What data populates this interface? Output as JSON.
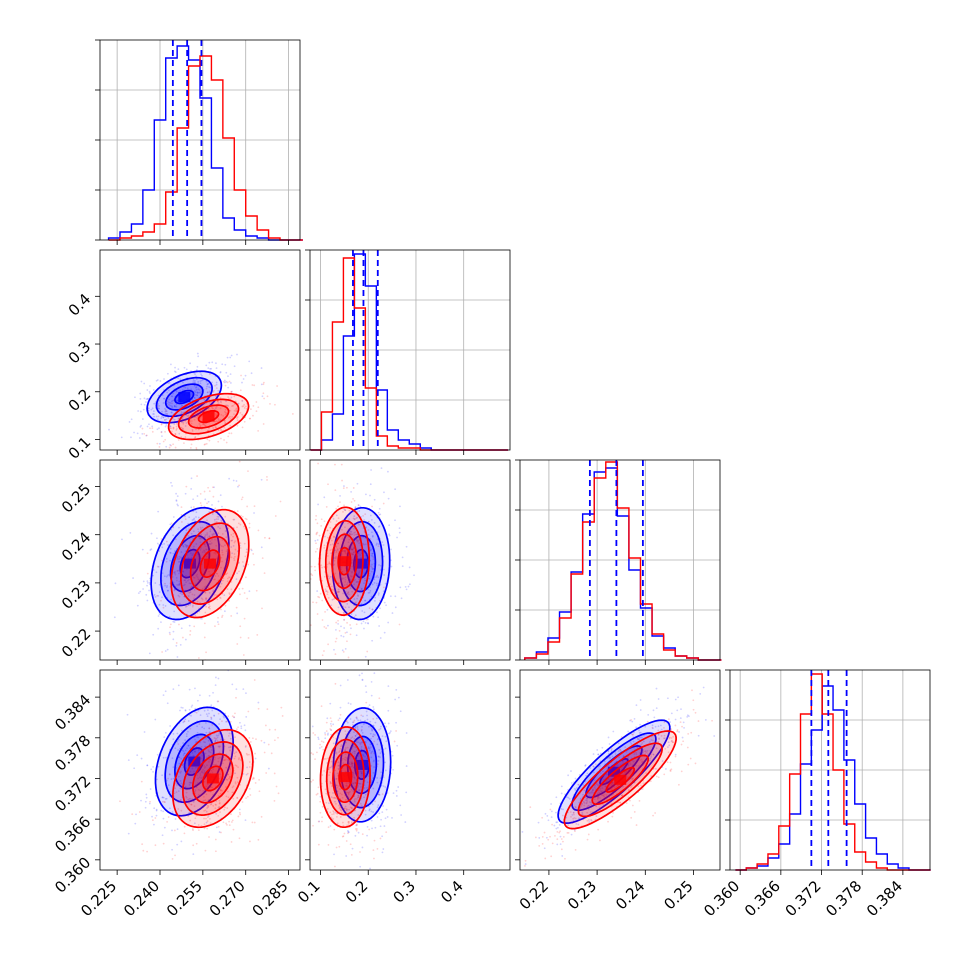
{
  "chart_data": {
    "type": "corner",
    "grid": true,
    "colors": {
      "series_a": "#0000ff",
      "series_b": "#ff0000"
    },
    "series": [
      {
        "color": "#0000ff"
      },
      {
        "color": "#ff0000"
      }
    ],
    "parameters": [
      {
        "range": [
          0.219,
          0.289
        ],
        "ticks": [
          "0.225",
          "0.240",
          "0.255",
          "0.270",
          "0.285"
        ]
      },
      {
        "range": [
          0.078,
          0.497
        ],
        "ticks": [
          "0.1",
          "0.2",
          "0.3",
          "0.4"
        ]
      },
      {
        "range": [
          0.214,
          0.2555
        ],
        "ticks": [
          "0.22",
          "0.23",
          "0.24",
          "0.25"
        ]
      },
      {
        "range": [
          0.3585,
          0.388
        ],
        "ticks": [
          "0.360",
          "0.366",
          "0.372",
          "0.378",
          "0.384"
        ]
      }
    ],
    "quantiles": [
      {
        "series": "blue",
        "values": [
          0.2445,
          0.2495,
          0.2545
        ]
      },
      {
        "series": "blue",
        "values": [
          0.168,
          0.19,
          0.22
        ]
      },
      {
        "series": "blue",
        "values": [
          0.2285,
          0.234,
          0.2395
        ]
      },
      {
        "series": "blue",
        "values": [
          0.3705,
          0.373,
          0.3757
        ]
      }
    ],
    "marginals": [
      {
        "edges": [
          0.222,
          0.226,
          0.23,
          0.234,
          0.238,
          0.242,
          0.246,
          0.25,
          0.254,
          0.258,
          0.262,
          0.266,
          0.27,
          0.274,
          0.278,
          0.282,
          0.286,
          0.29
        ],
        "blue": [
          0.01,
          0.04,
          0.08,
          0.25,
          0.6,
          0.91,
          0.97,
          0.9,
          0.71,
          0.36,
          0.11,
          0.05,
          0.02,
          0.01,
          0,
          0,
          0
        ],
        "red": [
          0,
          0.01,
          0.02,
          0.04,
          0.08,
          0.24,
          0.56,
          0.87,
          0.92,
          0.8,
          0.51,
          0.25,
          0.12,
          0.05,
          0.01,
          0,
          0
        ]
      },
      {
        "edges": [
          0.079,
          0.102,
          0.125,
          0.148,
          0.171,
          0.194,
          0.217,
          0.24,
          0.263,
          0.286,
          0.309,
          0.332,
          0.355,
          0.378,
          0.401,
          0.424,
          0.447,
          0.47,
          0.493
        ],
        "blue": [
          0.0,
          0.05,
          0.18,
          0.57,
          0.98,
          0.82,
          0.3,
          0.1,
          0.05,
          0.03,
          0.01,
          0.0,
          0.0,
          0.0,
          0.0,
          0.0,
          0.0,
          0.0
        ],
        "red": [
          0.0,
          0.19,
          0.64,
          0.96,
          0.71,
          0.31,
          0.07,
          0.02,
          0.01,
          0.01,
          0.0,
          0.0,
          0.0,
          0.0,
          0.0,
          0.0,
          0.0,
          0.0
        ]
      },
      {
        "edges": [
          0.215,
          0.2174,
          0.2198,
          0.2222,
          0.2246,
          0.227,
          0.2294,
          0.2318,
          0.2342,
          0.2366,
          0.239,
          0.2414,
          0.2438,
          0.2462,
          0.2486,
          0.251,
          0.2534,
          0.2558
        ],
        "blue": [
          0.01,
          0.04,
          0.11,
          0.24,
          0.44,
          0.73,
          0.94,
          0.96,
          0.72,
          0.45,
          0.26,
          0.12,
          0.06,
          0.02,
          0.01,
          0.0,
          0.0
        ],
        "red": [
          0.01,
          0.03,
          0.09,
          0.21,
          0.43,
          0.69,
          0.91,
          0.99,
          0.76,
          0.51,
          0.28,
          0.13,
          0.05,
          0.02,
          0.01,
          0.0,
          0.0
        ]
      },
      {
        "edges": [
          0.3593,
          0.3609,
          0.3625,
          0.3641,
          0.3657,
          0.3673,
          0.3689,
          0.3705,
          0.3721,
          0.3737,
          0.3753,
          0.3769,
          0.3785,
          0.3801,
          0.3817,
          0.3833,
          0.3849,
          0.3865,
          0.3881
        ],
        "blue": [
          0.0,
          0.01,
          0.02,
          0.06,
          0.13,
          0.28,
          0.53,
          0.7,
          0.92,
          0.8,
          0.55,
          0.33,
          0.16,
          0.08,
          0.03,
          0.01,
          0.0,
          0.0
        ],
        "red": [
          0.0,
          0.01,
          0.03,
          0.08,
          0.22,
          0.48,
          0.78,
          0.98,
          0.78,
          0.5,
          0.23,
          0.09,
          0.04,
          0.01,
          0.0,
          0.0,
          0.0,
          0.0
        ]
      }
    ],
    "joints": [
      {
        "row": 1,
        "col": 0,
        "blue": {
          "mean": [
            0.2485,
            0.189
          ],
          "sd": [
            0.0065,
            0.027
          ],
          "rho": 0.45
        },
        "red": {
          "mean": [
            0.257,
            0.148
          ],
          "sd": [
            0.007,
            0.024
          ],
          "rho": 0.45
        }
      },
      {
        "row": 2,
        "col": 0,
        "blue": {
          "mean": [
            0.2505,
            0.234
          ],
          "sd": [
            0.0068,
            0.0058
          ],
          "rho": 0.35
        },
        "red": {
          "mean": [
            0.2575,
            0.234
          ],
          "sd": [
            0.0068,
            0.0056
          ],
          "rho": 0.35
        }
      },
      {
        "row": 2,
        "col": 1,
        "blue": {
          "mean": [
            0.185,
            0.234
          ],
          "sd": [
            0.03,
            0.0058
          ],
          "rho": 0.05
        },
        "red": {
          "mean": [
            0.15,
            0.2345
          ],
          "sd": [
            0.026,
            0.0056
          ],
          "rho": 0.05
        }
      },
      {
        "row": 3,
        "col": 0,
        "blue": {
          "mean": [
            0.252,
            0.3745
          ],
          "sd": [
            0.0068,
            0.004
          ],
          "rho": 0.35
        },
        "red": {
          "mean": [
            0.2585,
            0.372
          ],
          "sd": [
            0.007,
            0.0036
          ],
          "rho": 0.35
        }
      },
      {
        "row": 3,
        "col": 1,
        "blue": {
          "mean": [
            0.187,
            0.374
          ],
          "sd": [
            0.03,
            0.0042
          ],
          "rho": 0.05
        },
        "red": {
          "mean": [
            0.152,
            0.3722
          ],
          "sd": [
            0.026,
            0.0037
          ],
          "rho": 0.05
        }
      },
      {
        "row": 3,
        "col": 2,
        "blue": {
          "mean": [
            0.2335,
            0.373
          ],
          "sd": [
            0.0058,
            0.0038
          ],
          "rho": 0.85
        },
        "red": {
          "mean": [
            0.2348,
            0.3718
          ],
          "sd": [
            0.0058,
            0.0036
          ],
          "rho": 0.85
        }
      }
    ]
  }
}
